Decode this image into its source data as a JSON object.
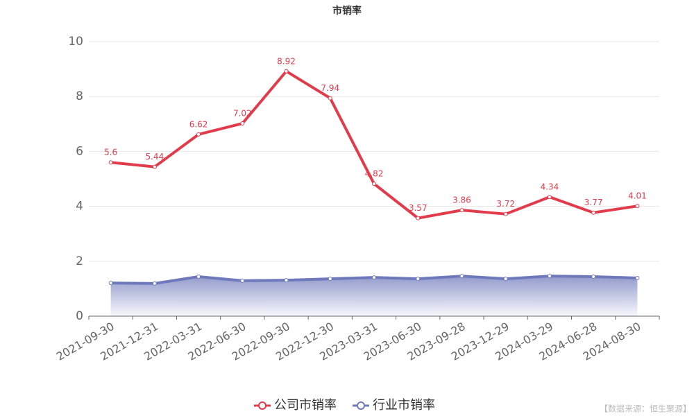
{
  "chart_data": {
    "type": "line",
    "title": "市销率",
    "categories": [
      "2021-09-30",
      "2021-12-31",
      "2022-03-31",
      "2022-06-30",
      "2022-09-30",
      "2022-12-30",
      "2023-03-31",
      "2023-06-30",
      "2023-09-28",
      "2023-12-29",
      "2024-03-29",
      "2024-06-28",
      "2024-08-30"
    ],
    "series": [
      {
        "name": "公司市销率",
        "color": "#e23b4b",
        "show_labels": true,
        "area": false,
        "values": [
          5.6,
          5.44,
          6.62,
          7.02,
          8.92,
          7.94,
          4.82,
          3.57,
          3.86,
          3.72,
          4.34,
          3.77,
          4.01
        ]
      },
      {
        "name": "行业市销率",
        "color": "#6e79bb",
        "show_labels": false,
        "area": true,
        "values": [
          1.21,
          1.19,
          1.44,
          1.29,
          1.31,
          1.36,
          1.41,
          1.36,
          1.46,
          1.36,
          1.46,
          1.44,
          1.39
        ]
      }
    ],
    "ylim": [
      0,
      10
    ],
    "yticks": [
      0,
      2,
      4,
      6,
      8,
      10
    ],
    "grid": true,
    "legend": "bottom",
    "source": "【数据来源：恒生聚源】"
  }
}
